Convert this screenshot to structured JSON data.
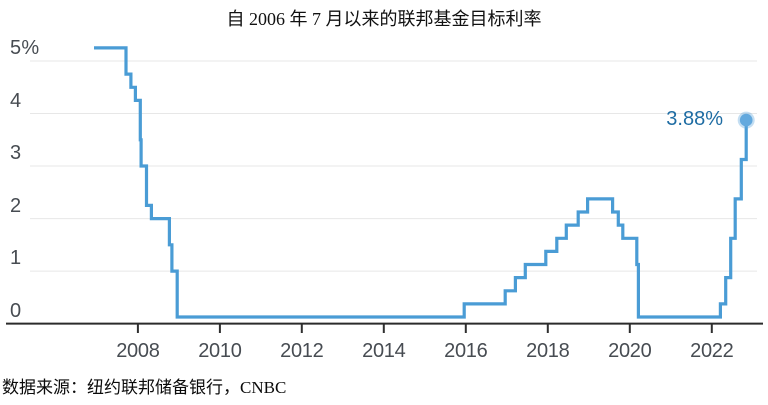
{
  "chart_data": {
    "type": "line",
    "subtype": "step-after",
    "title": "自 2006 年 7 月以来的联邦基金目标利率",
    "source_note": "数据来源：纽约联邦储备银行，CNBC",
    "end_label": "3.88%",
    "legend": "none",
    "grid": "horizontal-only",
    "xlabel": "",
    "ylabel": "",
    "xlim": [
      2006.93,
      2023.2
    ],
    "ylim": [
      0,
      5
    ],
    "y_ticks": [
      {
        "value": 5,
        "label": "5%"
      },
      {
        "value": 4,
        "label": "4"
      },
      {
        "value": 3,
        "label": "3"
      },
      {
        "value": 2,
        "label": "2"
      },
      {
        "value": 1,
        "label": "1"
      },
      {
        "value": 0,
        "label": "0"
      }
    ],
    "x_ticks": [
      {
        "value": 2008,
        "label": "2008"
      },
      {
        "value": 2010,
        "label": "2010"
      },
      {
        "value": 2012,
        "label": "2012"
      },
      {
        "value": 2014,
        "label": "2014"
      },
      {
        "value": 2016,
        "label": "2016"
      },
      {
        "value": 2018,
        "label": "2018"
      },
      {
        "value": 2020,
        "label": "2020"
      },
      {
        "value": 2022,
        "label": "2022"
      }
    ],
    "series": [
      {
        "name": "联邦基金目标利率",
        "points": [
          {
            "date": "2006-07",
            "year": 2006.53,
            "value": 5.25
          },
          {
            "date": "2007-09",
            "year": 2007.71,
            "value": 4.75
          },
          {
            "date": "2007-10",
            "year": 2007.83,
            "value": 4.5
          },
          {
            "date": "2007-12",
            "year": 2007.94,
            "value": 4.25
          },
          {
            "date": "2008-01",
            "year": 2008.06,
            "value": 3.5
          },
          {
            "date": "2008-01",
            "year": 2008.08,
            "value": 3.0
          },
          {
            "date": "2008-03",
            "year": 2008.21,
            "value": 2.25
          },
          {
            "date": "2008-04",
            "year": 2008.33,
            "value": 2.0
          },
          {
            "date": "2008-10",
            "year": 2008.77,
            "value": 1.5
          },
          {
            "date": "2008-10",
            "year": 2008.83,
            "value": 1.0
          },
          {
            "date": "2008-12",
            "year": 2008.96,
            "value": 0.125
          },
          {
            "date": "2015-12",
            "year": 2015.96,
            "value": 0.375
          },
          {
            "date": "2016-12",
            "year": 2016.96,
            "value": 0.625
          },
          {
            "date": "2017-03",
            "year": 2017.21,
            "value": 0.875
          },
          {
            "date": "2017-06",
            "year": 2017.45,
            "value": 1.125
          },
          {
            "date": "2017-12",
            "year": 2017.95,
            "value": 1.375
          },
          {
            "date": "2018-03",
            "year": 2018.22,
            "value": 1.625
          },
          {
            "date": "2018-06",
            "year": 2018.45,
            "value": 1.875
          },
          {
            "date": "2018-09",
            "year": 2018.74,
            "value": 2.125
          },
          {
            "date": "2018-12",
            "year": 2018.97,
            "value": 2.375
          },
          {
            "date": "2019-08",
            "year": 2019.58,
            "value": 2.125
          },
          {
            "date": "2019-09",
            "year": 2019.72,
            "value": 1.875
          },
          {
            "date": "2019-10",
            "year": 2019.83,
            "value": 1.625
          },
          {
            "date": "2020-03",
            "year": 2020.17,
            "value": 1.125
          },
          {
            "date": "2020-03",
            "year": 2020.21,
            "value": 0.125
          },
          {
            "date": "2022-03",
            "year": 2022.21,
            "value": 0.375
          },
          {
            "date": "2022-05",
            "year": 2022.34,
            "value": 0.875
          },
          {
            "date": "2022-06",
            "year": 2022.46,
            "value": 1.625
          },
          {
            "date": "2022-07",
            "year": 2022.57,
            "value": 2.375
          },
          {
            "date": "2022-09",
            "year": 2022.72,
            "value": 3.125
          },
          {
            "date": "2022-11",
            "year": 2022.84,
            "value": 3.875
          }
        ]
      }
    ],
    "colors": {
      "line": "#4a9cd5",
      "dot": "#63a9de",
      "dot_halo": "rgba(99,169,222,0.38)",
      "annotation": "#1e6ca3",
      "grid": "#e7e7e7",
      "axis": "#2b2b2b",
      "tick": "#2f2f2f",
      "tick_label": "#474c52",
      "title": "#111111",
      "background": "#ffffff"
    }
  }
}
